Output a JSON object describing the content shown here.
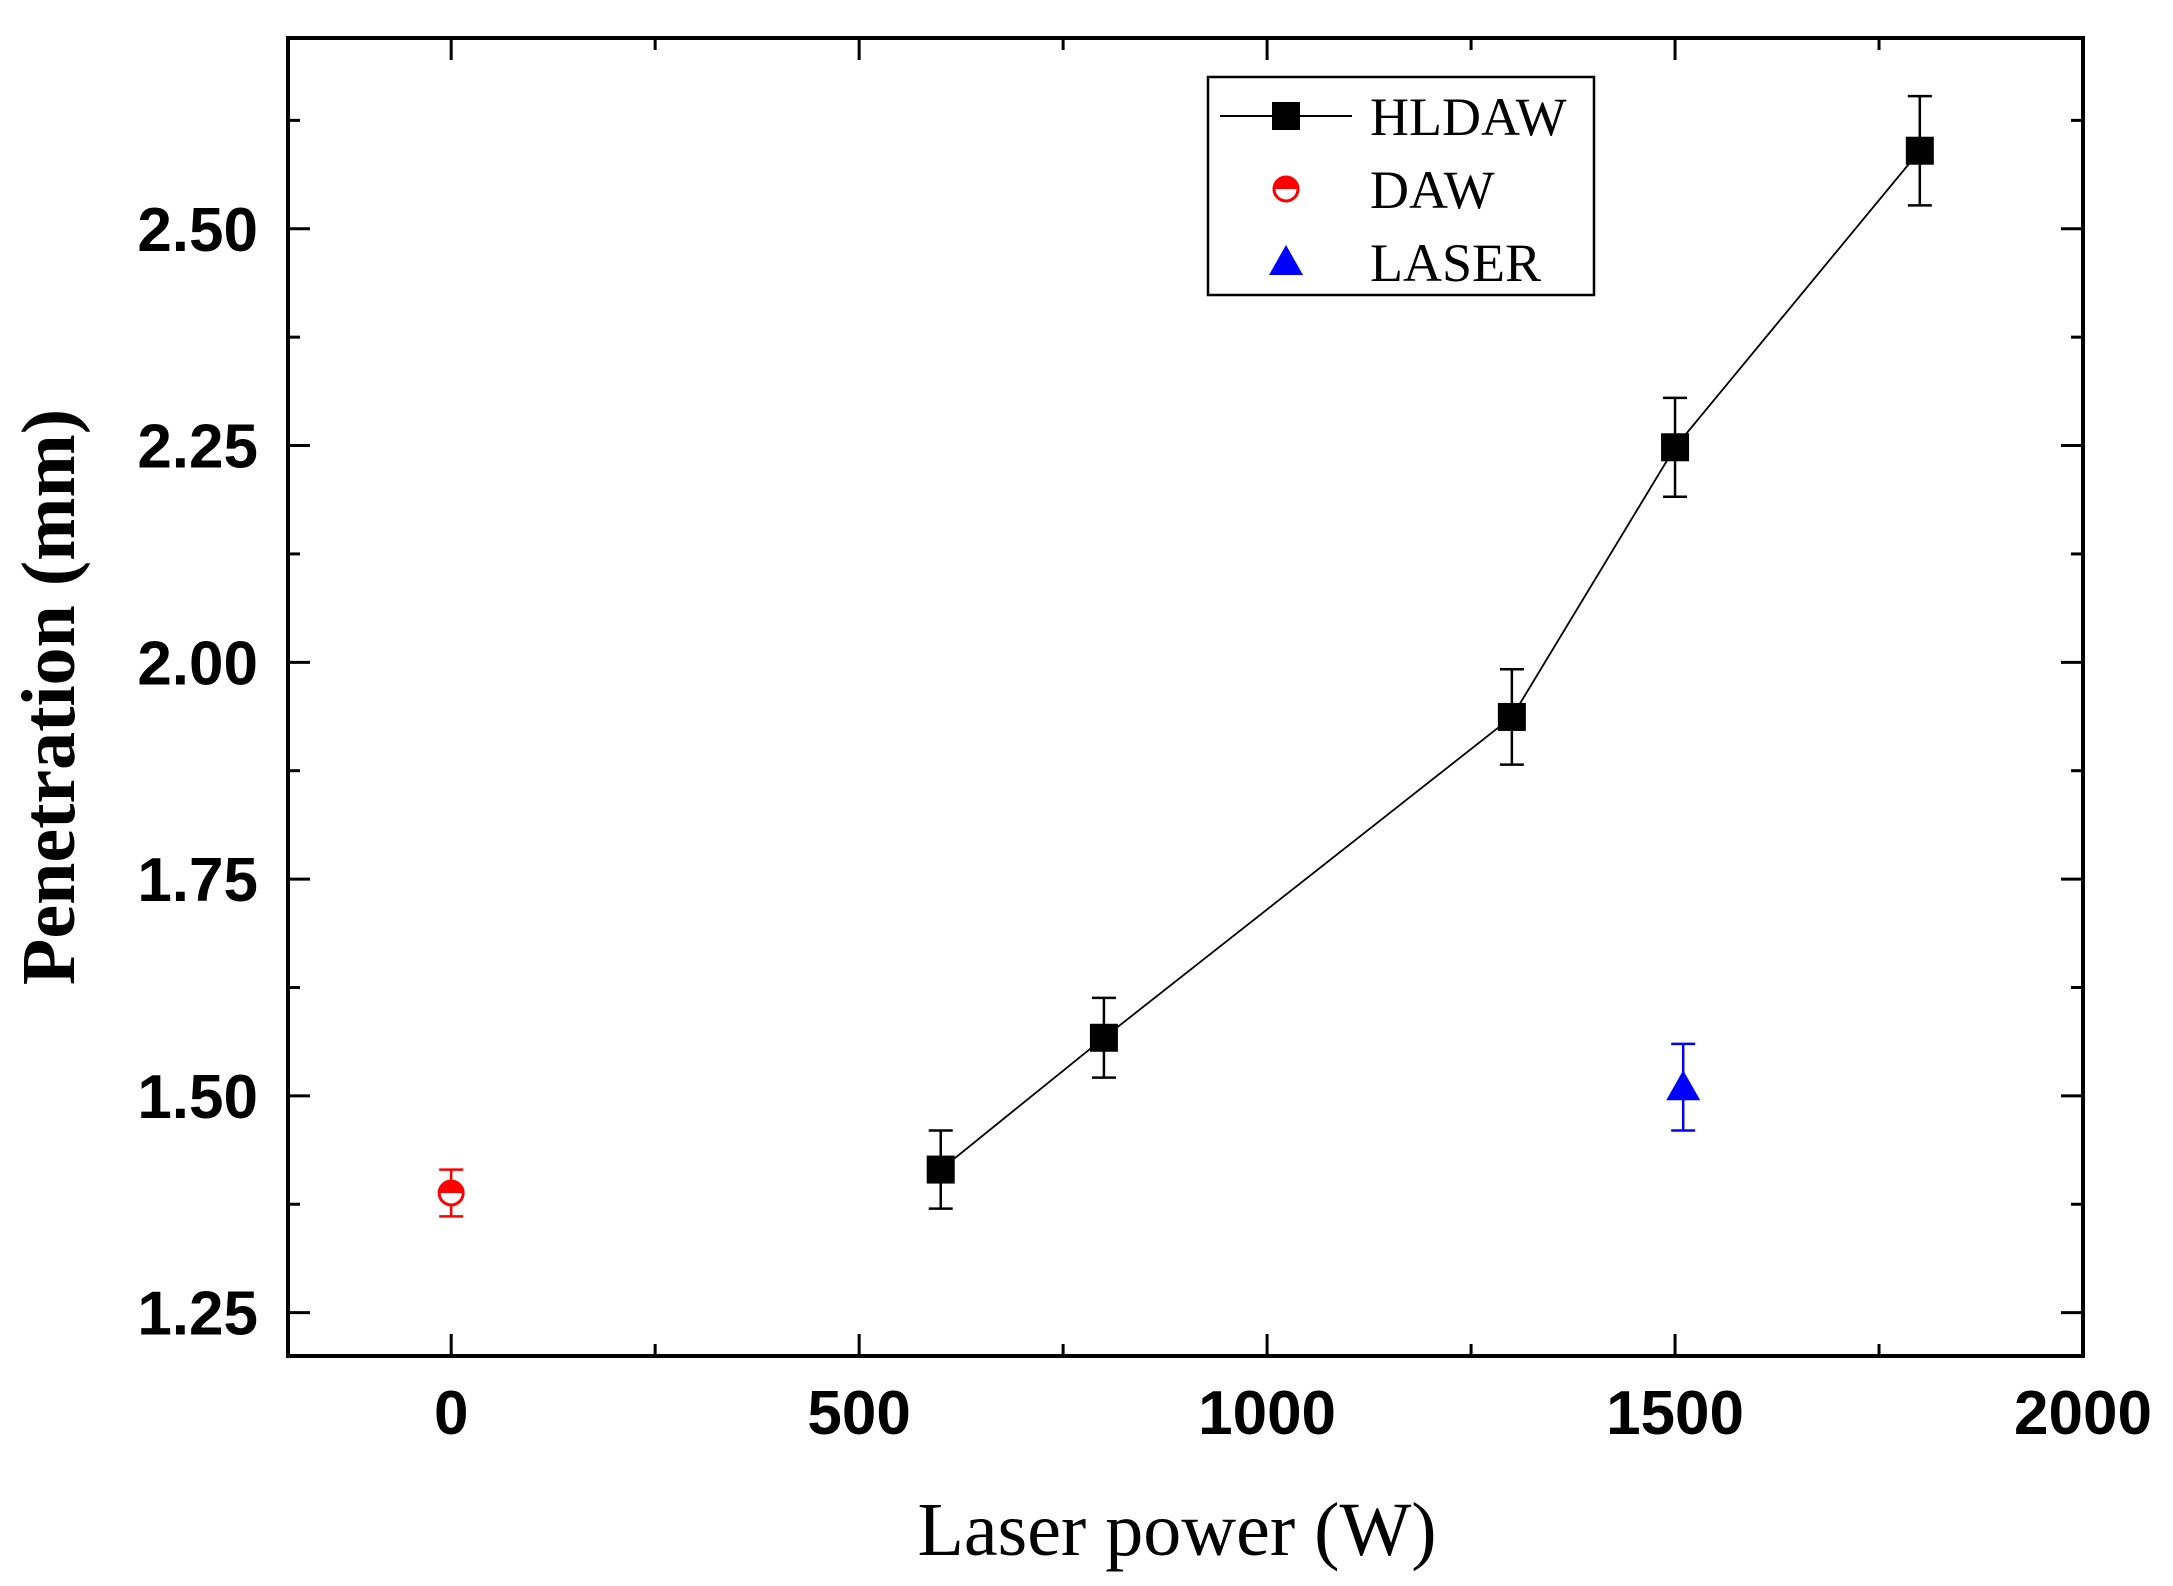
{
  "chart_data": {
    "type": "scatter",
    "title": "",
    "xlabel": "Laser power (W)",
    "ylabel": "Penetration (mm)",
    "xlim": [
      -200,
      2000
    ],
    "ylim": [
      1.2,
      2.72
    ],
    "x_ticks": [
      0,
      500,
      1000,
      1500,
      2000
    ],
    "x_tick_labels": [
      "0",
      "500",
      "1000",
      "1500",
      "2000"
    ],
    "y_ticks": [
      1.25,
      1.5,
      1.75,
      2.0,
      2.25,
      2.5
    ],
    "y_tick_labels": [
      "1.25",
      "1.50",
      "1.75",
      "2.00",
      "2.25",
      "2.50"
    ],
    "grid": false,
    "legend_position": "top-right",
    "series": [
      {
        "name": "HLDAW",
        "marker": "square",
        "line": true,
        "color": "#000000",
        "points": [
          {
            "x": 600,
            "y": 1.415,
            "err": 0.045
          },
          {
            "x": 800,
            "y": 1.567,
            "err": 0.046
          },
          {
            "x": 1300,
            "y": 1.937,
            "err": 0.055
          },
          {
            "x": 1500,
            "y": 2.248,
            "err": 0.057
          },
          {
            "x": 1800,
            "y": 2.59,
            "err": 0.063
          }
        ]
      },
      {
        "name": "DAW",
        "marker": "circle-half",
        "line": false,
        "color": "#ff0000",
        "points": [
          {
            "x": 0,
            "y": 1.388,
            "err": 0.027
          }
        ]
      },
      {
        "name": "LASER",
        "marker": "triangle",
        "line": false,
        "color": "#0000ff",
        "points": [
          {
            "x": 1510,
            "y": 1.51,
            "err": 0.05
          }
        ]
      }
    ]
  }
}
